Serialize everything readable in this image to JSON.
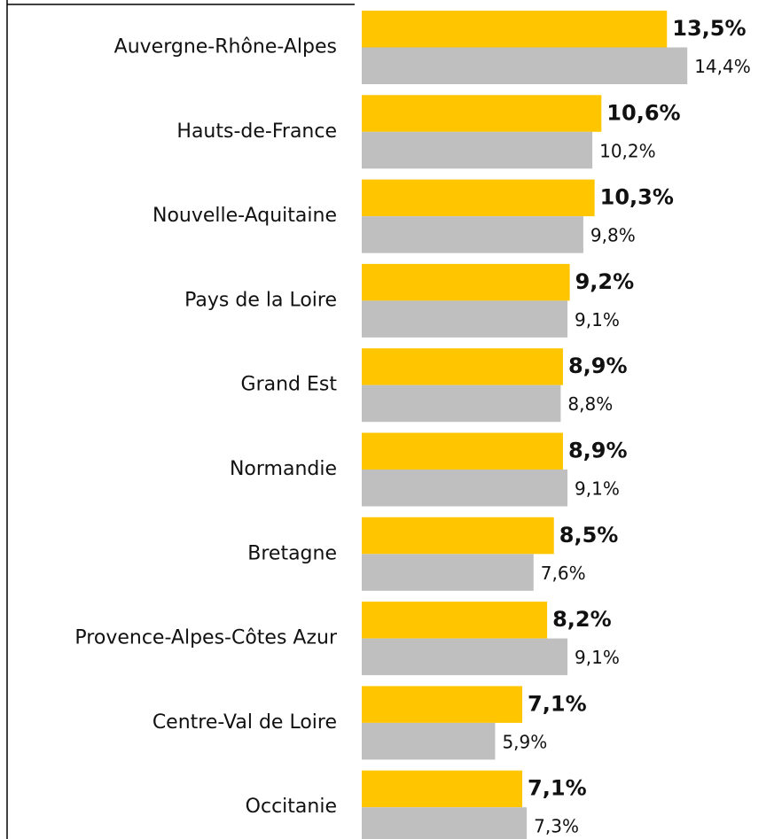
{
  "chart_data": {
    "type": "bar",
    "orientation": "horizontal",
    "categories": [
      "Auvergne-Rhône-Alpes",
      "Hauts-de-France",
      "Nouvelle-Aquitaine",
      "Pays de la Loire",
      "Grand Est",
      "Normandie",
      "Bretagne",
      "Provence-Alpes-Côtes Azur",
      "Centre-Val de Loire",
      "Occitanie"
    ],
    "series": [
      {
        "color": "#ffc600",
        "values": [
          13.5,
          10.6,
          10.3,
          9.2,
          8.9,
          8.9,
          8.5,
          8.2,
          7.1,
          7.1
        ],
        "value_labels": [
          "13,5%",
          "10,6%",
          "10,3%",
          "9,2%",
          "8,9%",
          "8,9%",
          "8,5%",
          "8,2%",
          "7,1%",
          "7,1%"
        ]
      },
      {
        "color": "#bfbfbf",
        "values": [
          14.4,
          10.2,
          9.8,
          9.1,
          8.8,
          9.1,
          7.6,
          9.1,
          5.9,
          7.3
        ],
        "value_labels": [
          "14,4%",
          "10,2%",
          "9,8%",
          "9,1%",
          "8,8%",
          "9,1%",
          "7,6%",
          "9,1%",
          "5,9%",
          "7,3%"
        ]
      }
    ]
  }
}
